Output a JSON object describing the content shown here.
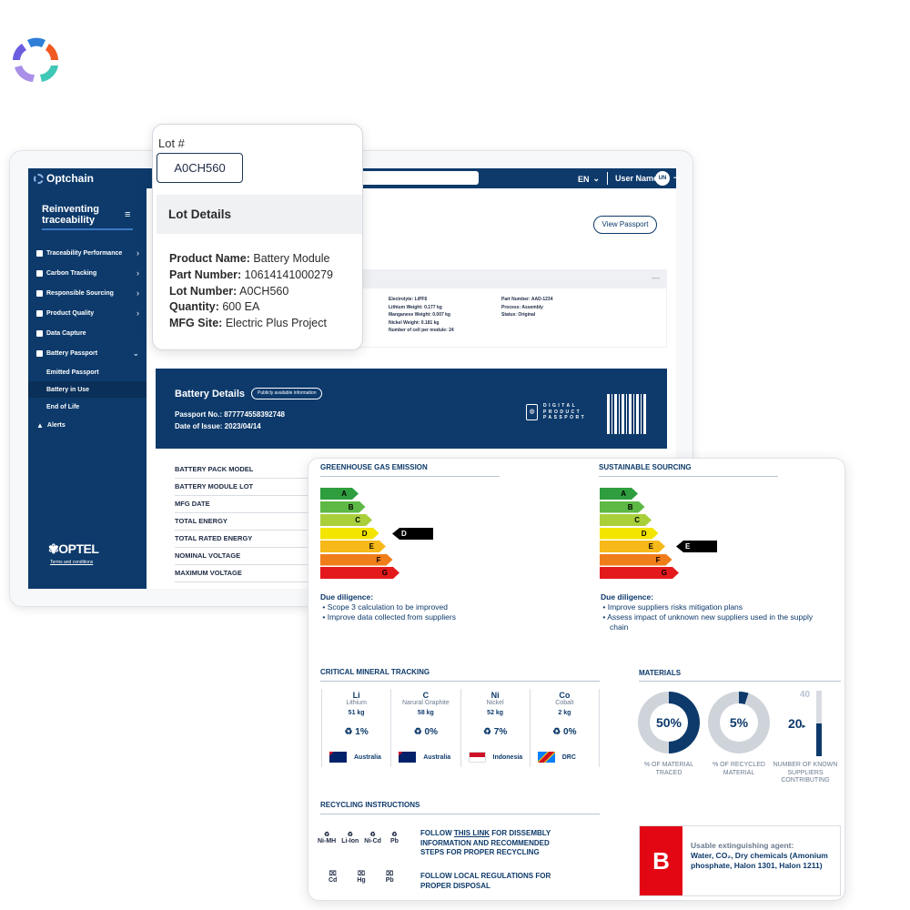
{
  "colors": {
    "navy": "#0d3a6b",
    "red": "#e30613"
  },
  "app": {
    "brand": "Optchain",
    "lang": "EN",
    "user": "User Name",
    "avatar": "UN",
    "view_passport": "View Passport"
  },
  "sidebar": {
    "title": "Reinventing traceability",
    "items": [
      {
        "label": "Traceability Performance",
        "icon": "chart-icon"
      },
      {
        "label": "Carbon Tracking",
        "icon": "globe-icon"
      },
      {
        "label": "Responsible Sourcing",
        "icon": "leaf-icon"
      },
      {
        "label": "Product Quality",
        "icon": "check-icon"
      },
      {
        "label": "Data Capture",
        "icon": "database-icon"
      },
      {
        "label": "Battery Passport",
        "icon": "battery-icon"
      }
    ],
    "sub_items": [
      "Emitted Passport",
      "Battery in Use",
      "End of Life"
    ],
    "alerts": "Alerts",
    "footer_logo": "OPTEL",
    "terms": "Terms and conditions"
  },
  "specs": {
    "col1": [
      "Electrolyte: LiPF6",
      "Lithium Weight: 0.177 kg",
      "Manganese Weight: 0.007 kg",
      "Nickel Weight: 0.181 kg",
      "Number of cell per module: 24"
    ],
    "col2": [
      "Part Number: AAD-1234",
      "Process: Assembly",
      "Status: Original"
    ]
  },
  "battery_details": {
    "title": "Battery Details",
    "badge": "Publicly available information",
    "passport_no": "Passport No.: 877774558392748",
    "date_issue": "Date of Issue: 2023/04/14",
    "dpp": "DIGITAL PRODUCT PASSPORT"
  },
  "rows": [
    "BATTERY PACK MODEL",
    "BATTERY MODULE LOT",
    "MFG DATE",
    "TOTAL ENERGY",
    "TOTAL RATED ENERGY",
    "NOMINAL VOLTAGE",
    "MAXIMUM VOLTAGE"
  ],
  "lot": {
    "label": "Lot #",
    "value": "A0CH560",
    "details_title": "Lot Details",
    "fields": [
      {
        "k": "Product Name:",
        "v": "Battery Module"
      },
      {
        "k": "Part Number:",
        "v": "10614141000279"
      },
      {
        "k": "Lot Number:",
        "v": "A0CH560"
      },
      {
        "k": "Quantity:",
        "v": "600 EA"
      },
      {
        "k": "MFG Site:",
        "v": "Electric Plus Project"
      }
    ]
  },
  "passport": {
    "ghg_title": "GREENHOUSE GAS EMISSION",
    "sourcing_title": "SUSTAINABLE SOURCING",
    "grades": [
      "A",
      "B",
      "C",
      "D",
      "E",
      "F",
      "G"
    ],
    "grade_colors": [
      "#2e9e3e",
      "#5db845",
      "#a9cf3b",
      "#f3e500",
      "#f7b81a",
      "#ef7d1a",
      "#e3191c"
    ],
    "ghg_grade": "D",
    "sourcing_grade": "E",
    "due_title": "Due diligence:",
    "ghg_due": [
      "Scope 3 calculation to be improved",
      "Improve data collected from suppliers"
    ],
    "sourcing_due": [
      "Improve suppliers risks mitigation plans",
      "Assess impact of unknown new suppliers used in the supply chain"
    ],
    "mineral_title": "CRITICAL MINERAL TRACKING",
    "minerals": [
      {
        "sym": "Li",
        "name": "Lithium",
        "weight": "51 kg",
        "recycled": "1%",
        "country": "Australia",
        "flag": "au"
      },
      {
        "sym": "C",
        "name": "Narural Graphite",
        "weight": "58 kg",
        "recycled": "0%",
        "country": "Australia",
        "flag": "au"
      },
      {
        "sym": "Ni",
        "name": "Nickel",
        "weight": "52 kg",
        "recycled": "7%",
        "country": "Indonesia",
        "flag": "id"
      },
      {
        "sym": "Co",
        "name": "Cobalt",
        "weight": "2 kg",
        "recycled": "0%",
        "country": "DRC",
        "flag": "cd"
      }
    ],
    "materials_title": "MATERIALS",
    "traced_pct": 50,
    "traced_label": "50%",
    "traced_cap": "% OF MATERIAL TRACED",
    "recycled_pct": 5,
    "recycled_label": "5%",
    "recycled_cap": "% OF RECYCLED MATERIAL",
    "suppliers_max": "40",
    "suppliers_value": "20",
    "suppliers_fraction": 0.5,
    "suppliers_cap": "NUMBER OF KNOWN SUPPLIERS CONTRIBUTING",
    "recycling_title": "RECYCLING INSTRUCTIONS",
    "chem_row1": [
      "Ni-MH",
      "Li-Ion",
      "Ni-Cd",
      "Pb"
    ],
    "chem_row2": [
      "Cd",
      "Hg",
      "Pb"
    ],
    "follow_pre": "FOLLOW ",
    "follow_link": "THIS LINK",
    "follow_post": " FOR DISSEMBLY INFORMATION AND RECOMMENDED STEPS FOR PROPER RECYCLING",
    "follow_local": "FOLLOW LOCAL REGULATIONS FOR PROPER DISPOSAL",
    "ext_class": "B",
    "ext_label": "Usable extinguishing agent:",
    "ext_agents": "Water, CO₂, Dry chemicals (Amonium phosphate, Halon 1301, Halon 1211)"
  }
}
